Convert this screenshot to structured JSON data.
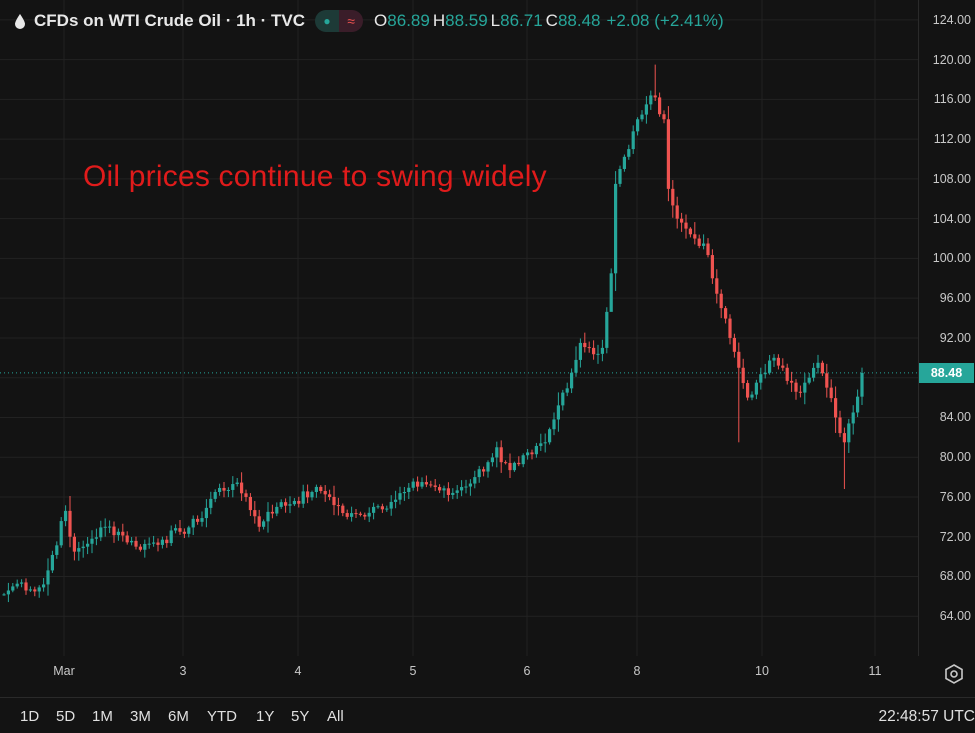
{
  "header": {
    "symbol_title": "CFDs on WTI Crude Oil · 1h · TVC",
    "ohlc": {
      "open_label": "O",
      "open": "86.89",
      "high_label": "H",
      "high": "88.59",
      "low_label": "L",
      "low": "86.71",
      "close_label": "C",
      "close": "88.48",
      "change": "+2.08 (+2.41%)"
    },
    "status_pill": {
      "left_icon": "dot-icon",
      "right_icon": "wave-icon"
    }
  },
  "annotation": "Oil prices continue to swing widely",
  "price_axis": {
    "ticks": [
      "124.00",
      "120.00",
      "116.00",
      "112.00",
      "108.00",
      "104.00",
      "100.00",
      "96.00",
      "92.00",
      "88.00",
      "84.00",
      "80.00",
      "76.00",
      "72.00",
      "68.00",
      "64.00"
    ],
    "last_price": "88.48"
  },
  "time_axis": {
    "labels": [
      "Mar",
      "3",
      "4",
      "5",
      "6",
      "8",
      "10",
      "11"
    ]
  },
  "bottom_bar": {
    "timeframes": [
      "1D",
      "5D",
      "1M",
      "3M",
      "6M",
      "YTD",
      "1Y",
      "5Y",
      "All"
    ],
    "clock": "22:48:57 UTC"
  },
  "colors": {
    "background": "#131313",
    "up": "#26a69a",
    "down": "#ef5350",
    "annotation": "#e01b1b",
    "grid": "#222222"
  },
  "chart_data": {
    "type": "candlestick",
    "ylim": [
      60,
      126
    ],
    "last_value": 88.48,
    "x_labels": [
      "Mar",
      "3",
      "4",
      "5",
      "6",
      "8",
      "10",
      "11"
    ],
    "anchors": [
      [
        0,
        66.2
      ],
      [
        2,
        67.0
      ],
      [
        4,
        67.4
      ],
      [
        6,
        66.7
      ],
      [
        8,
        66.9
      ],
      [
        9,
        67.2
      ],
      [
        14,
        74.6
      ],
      [
        15,
        72.0
      ],
      [
        16,
        70.5
      ],
      [
        18,
        71.0
      ],
      [
        20,
        71.8
      ],
      [
        23,
        73.0
      ],
      [
        26,
        72.5
      ],
      [
        30,
        71.0
      ],
      [
        33,
        71.3
      ],
      [
        36,
        71.7
      ],
      [
        40,
        72.5
      ],
      [
        44,
        73.5
      ],
      [
        48,
        76.5
      ],
      [
        52,
        77.3
      ],
      [
        55,
        76.0
      ],
      [
        58,
        73.0
      ],
      [
        60,
        74.5
      ],
      [
        62,
        75.0
      ],
      [
        66,
        75.6
      ],
      [
        70,
        76.5
      ],
      [
        72,
        76.6
      ],
      [
        74,
        76.0
      ],
      [
        78,
        74.0
      ],
      [
        81,
        74.2
      ],
      [
        84,
        75.0
      ],
      [
        88,
        75.5
      ],
      [
        91,
        76.5
      ],
      [
        95,
        77.5
      ],
      [
        98,
        77.0
      ],
      [
        101,
        76.2
      ],
      [
        104,
        77.0
      ],
      [
        107,
        78.0
      ],
      [
        110,
        79.5
      ],
      [
        112,
        81.0
      ],
      [
        113,
        79.5
      ],
      [
        115,
        78.7
      ],
      [
        117,
        79.3
      ],
      [
        120,
        80.3
      ],
      [
        123,
        81.5
      ],
      [
        125,
        83.8
      ],
      [
        127,
        86.5
      ],
      [
        129,
        88.5
      ],
      [
        131,
        91.5
      ],
      [
        133,
        91.0
      ],
      [
        135,
        90.4
      ],
      [
        136,
        91.0
      ],
      [
        138,
        98.5
      ],
      [
        139,
        107.5
      ],
      [
        140,
        109.0
      ],
      [
        142,
        111.0
      ],
      [
        144,
        114.0
      ],
      [
        146,
        115.5
      ],
      [
        148,
        116.2
      ],
      [
        150,
        114.0
      ],
      [
        151,
        107.0
      ],
      [
        153,
        104.0
      ],
      [
        155,
        103.0
      ],
      [
        157,
        102.0
      ],
      [
        159,
        101.5
      ],
      [
        161,
        98.0
      ],
      [
        163,
        95.0
      ],
      [
        165,
        92.0
      ],
      [
        167,
        89.0
      ],
      [
        169,
        86.0
      ],
      [
        171,
        87.5
      ],
      [
        173,
        88.5
      ],
      [
        175,
        90.0
      ],
      [
        177,
        89.0
      ],
      [
        179,
        87.5
      ],
      [
        181,
        86.5
      ],
      [
        183,
        88.0
      ],
      [
        185,
        89.5
      ],
      [
        187,
        87.0
      ],
      [
        189,
        84.0
      ],
      [
        191,
        81.5
      ],
      [
        193,
        84.5
      ],
      [
        195,
        88.48
      ]
    ],
    "open_fill": [
      0,
      66.2
    ]
  }
}
